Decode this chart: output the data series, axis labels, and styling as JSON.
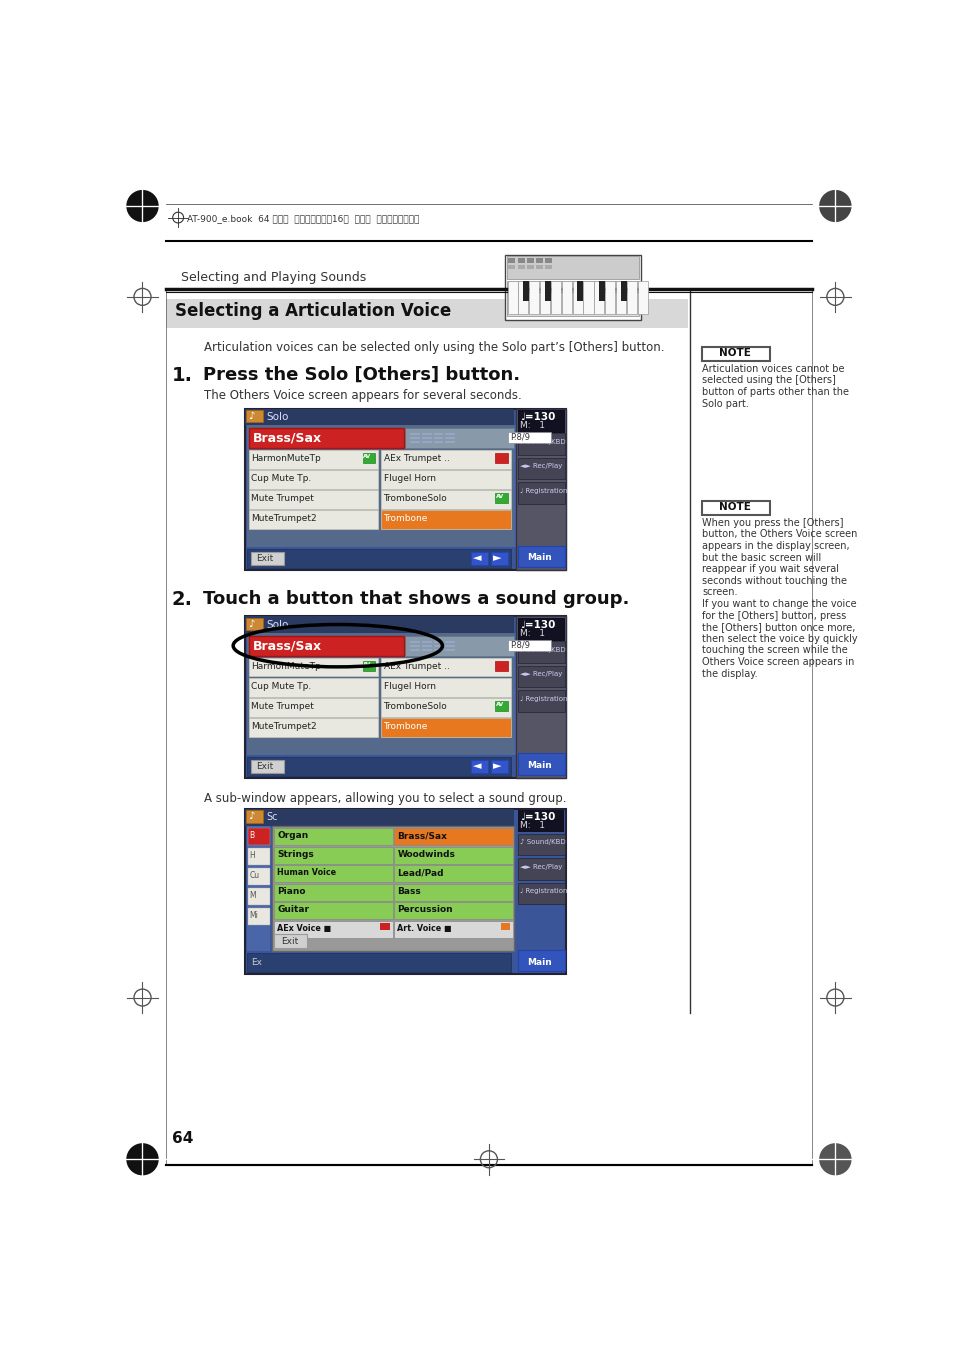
{
  "page_bg": "#ffffff",
  "page_width": 9.54,
  "page_height": 13.51,
  "header_text": "AT-900_e.book  64 ページ  ２００８年９月16日  火曜日  午前１０時３８分",
  "section_label": "Selecting and Playing Sounds",
  "section_title": "Selecting a Articulation Voice",
  "section_title_bg": "#d8d8d8",
  "intro_text": "Articulation voices can be selected only using the Solo part’s [Others] button.",
  "step1_num": "1.",
  "step1_title": "Press the Solo [Others] button.",
  "step1_desc": "The Others Voice screen appears for several seconds.",
  "step2_num": "2.",
  "step2_title": "Touch a button that shows a sound group.",
  "step2_desc": "A sub-window appears, allowing you to select a sound group.",
  "note1_title": "NOTE",
  "note1_text": "Articulation voices cannot be\nselected using the [Others]\nbutton of parts other than the\nSolo part.",
  "note2_title": "NOTE",
  "note2_text": "When you press the [Others]\nbutton, the Others Voice screen\nappears in the display screen,\nbut the basic screen will\nreappear if you wait several\nseconds without touching the\nscreen.\nIf you want to change the voice\nfor the [Others] button, press\nthe [Others] button once more,\nthen select the voice by quickly\ntouching the screen while the\nOthers Voice screen appears in\nthe display.",
  "page_number": "64",
  "scr_bg": "#3355aa",
  "scr_header_bg": "#334499",
  "scr_btn_red": "#cc2222",
  "scr_btn_orange": "#e87820",
  "scr_btn_blue": "#4466cc",
  "scr_btn_green": "#77cc44",
  "scr_btn_gray": "#e0e0e0",
  "scr_sidebar_dark": "#444455",
  "scr_main_btn": "#3355bb",
  "scr_text_light": "#ffffff",
  "scr_text_dark": "#222222",
  "scr_inner_bg": "#556699",
  "divider_color": "#333333"
}
